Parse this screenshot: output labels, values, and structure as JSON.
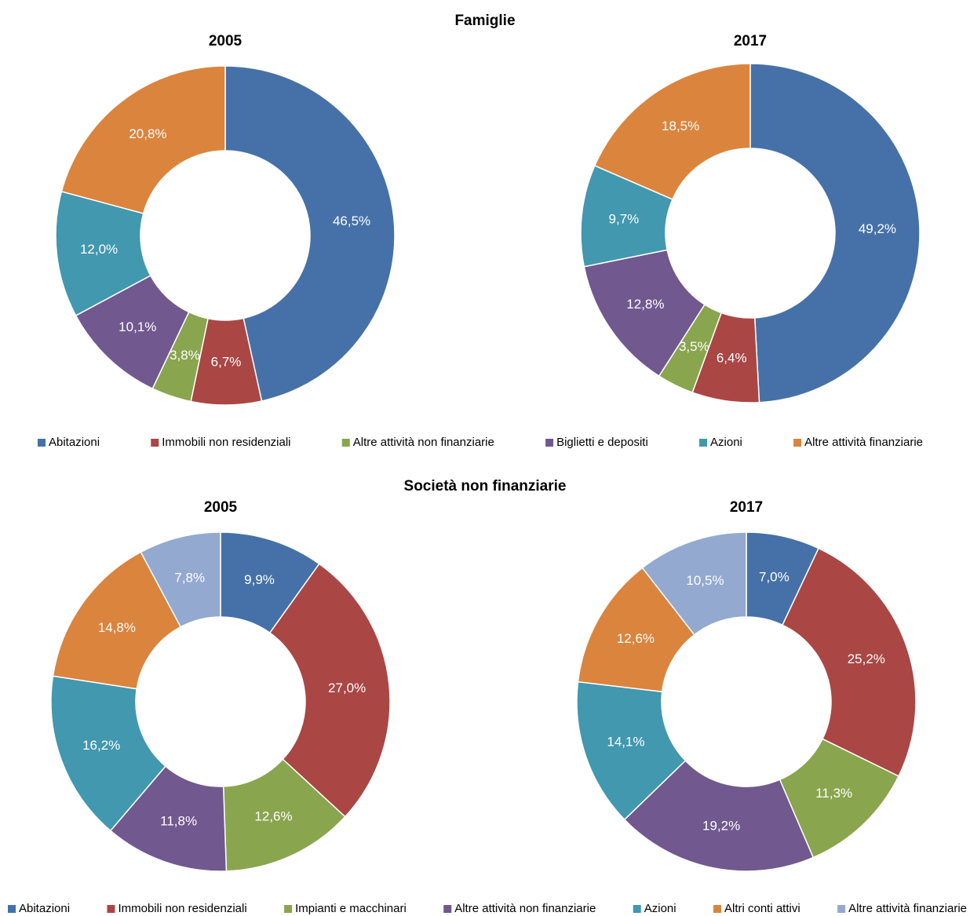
{
  "chart_data": [
    {
      "type": "donut",
      "title": "Famiglie",
      "categories": [
        "Abitazioni",
        "Immobili non residenziali",
        "Altre attività non finanziarie",
        "Biglietti e depositi",
        "Azioni",
        "Altre attività finanziarie"
      ],
      "colors": [
        "#4571a8",
        "#aa4644",
        "#89a54e",
        "#71588f",
        "#4198af",
        "#db843d"
      ],
      "series": [
        {
          "name": "2005",
          "values": [
            46.5,
            6.7,
            3.8,
            10.1,
            12.0,
            20.8
          ],
          "value_labels": [
            "46,5%",
            "6,7%",
            "3,8%",
            "10,1%",
            "12,0%",
            "20,8%"
          ]
        },
        {
          "name": "2017",
          "values": [
            49.2,
            6.4,
            3.5,
            12.8,
            9.7,
            18.5
          ],
          "value_labels": [
            "49,2%",
            "6,4%",
            "3,5%",
            "12,8%",
            "9,7%",
            "18,5%"
          ]
        }
      ]
    },
    {
      "type": "donut",
      "title": "Società non finanziarie",
      "categories": [
        "Abitazioni",
        "Immobili non residenziali",
        "Impianti e macchinari",
        "Altre attività non finanziarie",
        "Azioni",
        "Altri conti attivi",
        "Altre attività finanziarie"
      ],
      "colors": [
        "#4571a8",
        "#aa4644",
        "#89a54e",
        "#71588f",
        "#4198af",
        "#db843d",
        "#93a9cf"
      ],
      "series": [
        {
          "name": "2005",
          "values": [
            9.9,
            27.0,
            12.6,
            11.8,
            16.2,
            14.8,
            7.8
          ],
          "value_labels": [
            "9,9%",
            "27,0%",
            "12,6%",
            "11,8%",
            "16,2%",
            "14,8%",
            "7,8%"
          ]
        },
        {
          "name": "2017",
          "values": [
            7.0,
            25.2,
            11.3,
            19.2,
            14.1,
            12.6,
            10.5
          ],
          "value_labels": [
            "7,0%",
            "25,2%",
            "11,3%",
            "19,2%",
            "14,1%",
            "12,6%",
            "10,5%"
          ]
        }
      ]
    }
  ]
}
